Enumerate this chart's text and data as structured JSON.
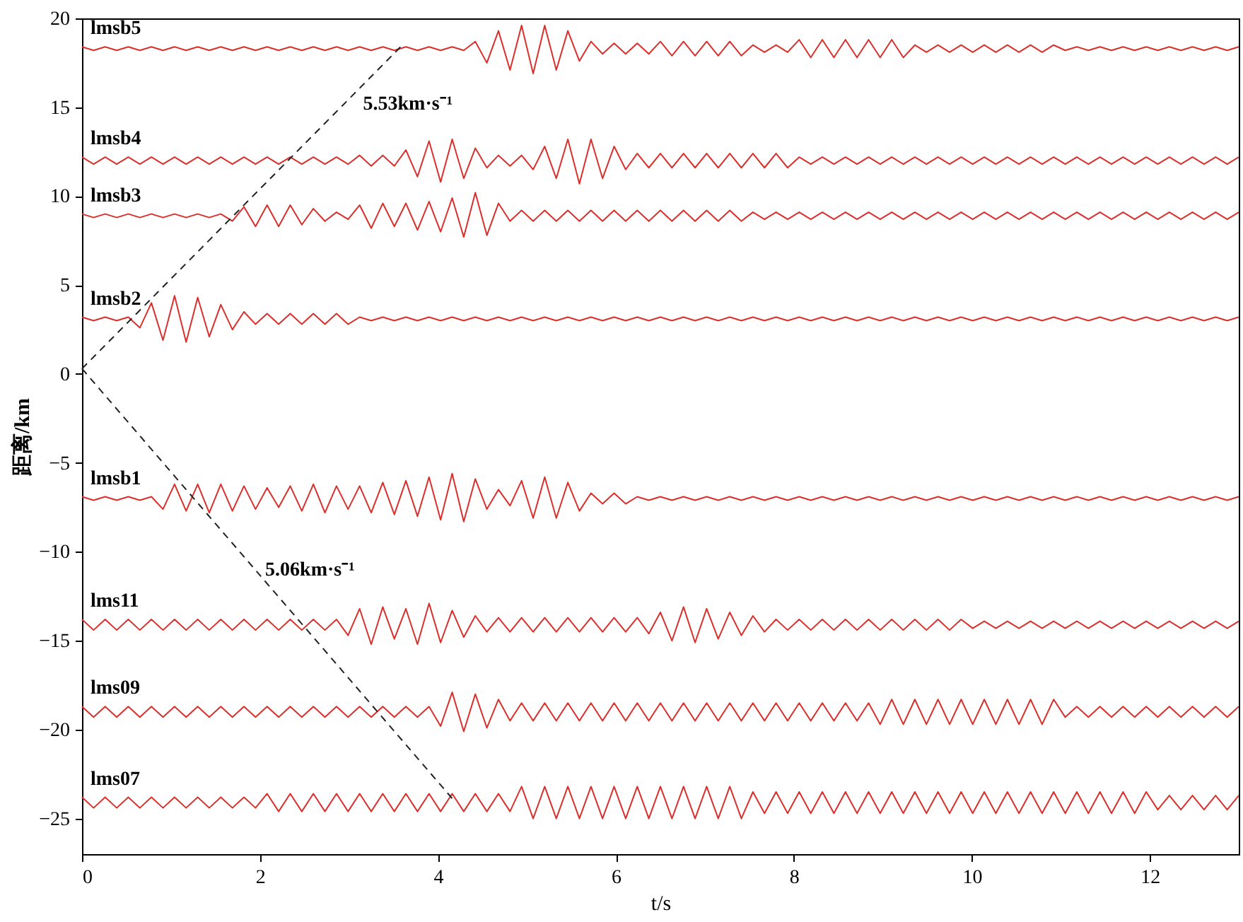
{
  "chart_data": {
    "type": "line",
    "xlabel": "t/s",
    "ylabel": "距离/km",
    "xlim": [
      0,
      13
    ],
    "ylim": [
      -27,
      20
    ],
    "xticks": [
      0,
      2,
      4,
      6,
      8,
      10,
      12
    ],
    "yticks": [
      -25,
      -20,
      -15,
      -10,
      -5,
      0,
      5,
      10,
      15,
      20
    ],
    "line_style": "solid",
    "x": [
      0,
      0.13,
      0.26,
      0.39,
      0.52,
      0.65,
      0.78,
      0.91,
      1.04,
      1.17,
      1.3,
      1.43,
      1.56,
      1.69,
      1.82,
      1.95,
      2.08,
      2.21,
      2.34,
      2.47,
      2.6,
      2.73,
      2.86,
      2.99,
      3.12,
      3.25,
      3.38,
      3.51,
      3.64,
      3.77,
      3.9,
      4.03,
      4.16,
      4.29,
      4.42,
      4.55,
      4.68,
      4.81,
      4.94,
      5.07,
      5.2,
      5.33,
      5.46,
      5.59,
      5.72,
      5.85,
      5.98,
      6.11,
      6.24,
      6.37,
      6.5,
      6.63,
      6.76,
      6.89,
      7.02,
      7.15,
      7.28,
      7.41,
      7.54,
      7.67,
      7.8,
      7.93,
      8.06,
      8.19,
      8.32,
      8.45,
      8.58,
      8.71,
      8.84,
      8.97,
      9.1,
      9.23,
      9.36,
      9.49,
      9.62,
      9.75,
      9.88,
      10.01,
      10.14,
      10.27,
      10.4,
      10.53,
      10.66,
      10.79,
      10.92,
      11.05,
      11.18,
      11.31,
      11.44,
      11.57,
      11.7,
      11.83,
      11.96,
      12.09,
      12.22,
      12.35,
      12.48,
      12.61,
      12.74,
      12.87,
      13
    ],
    "series": [
      {
        "name": "lmsb5",
        "color": "#d9302c",
        "values": [
          18.4,
          18.2,
          18.4,
          18.2,
          18.4,
          18.2,
          18.4,
          18.2,
          18.4,
          18.2,
          18.4,
          18.2,
          18.4,
          18.2,
          18.4,
          18.2,
          18.4,
          18.2,
          18.4,
          18.2,
          18.4,
          18.2,
          18.4,
          18.2,
          18.4,
          18.2,
          18.4,
          18.2,
          18.4,
          18.2,
          18.4,
          18.2,
          18.4,
          18.2,
          18.7,
          17.5,
          19.3,
          17.1,
          19.6,
          16.9,
          19.6,
          17.1,
          19.3,
          17.6,
          18.7,
          18.0,
          18.6,
          18.0,
          18.6,
          18.0,
          18.7,
          17.9,
          18.7,
          17.9,
          18.7,
          17.9,
          18.7,
          17.9,
          18.5,
          18.1,
          18.5,
          18.1,
          18.8,
          17.8,
          18.8,
          17.8,
          18.8,
          17.8,
          18.8,
          17.8,
          18.8,
          17.8,
          18.5,
          18.1,
          18.5,
          18.1,
          18.5,
          18.1,
          18.5,
          18.1,
          18.5,
          18.1,
          18.5,
          18.1,
          18.5,
          18.2,
          18.4,
          18.2,
          18.4,
          18.2,
          18.4,
          18.2,
          18.4,
          18.2,
          18.4,
          18.2,
          18.4,
          18.2,
          18.4,
          18.2,
          18.4
        ]
      },
      {
        "name": "lmsb4",
        "color": "#d9302c",
        "values": [
          12.2,
          11.8,
          12.2,
          11.8,
          12.2,
          11.8,
          12.2,
          11.8,
          12.2,
          11.8,
          12.2,
          11.8,
          12.2,
          11.8,
          12.2,
          11.8,
          12.2,
          11.8,
          12.2,
          11.8,
          12.2,
          11.8,
          12.2,
          11.8,
          12.3,
          11.7,
          12.3,
          11.7,
          12.6,
          11.1,
          13.1,
          10.8,
          13.2,
          11.0,
          12.7,
          11.6,
          12.3,
          11.7,
          12.3,
          11.5,
          12.8,
          11.0,
          13.2,
          10.7,
          13.2,
          11.0,
          12.8,
          11.5,
          12.4,
          11.6,
          12.4,
          11.6,
          12.4,
          11.6,
          12.4,
          11.6,
          12.4,
          11.6,
          12.4,
          11.6,
          12.4,
          11.6,
          12.2,
          11.8,
          12.2,
          11.8,
          12.2,
          11.8,
          12.2,
          11.8,
          12.2,
          11.8,
          12.2,
          11.8,
          12.2,
          11.8,
          12.2,
          11.8,
          12.2,
          11.8,
          12.2,
          11.8,
          12.2,
          11.8,
          12.2,
          11.8,
          12.2,
          11.8,
          12.2,
          11.8,
          12.2,
          11.8,
          12.2,
          11.8,
          12.2,
          11.8,
          12.2,
          11.8,
          12.2,
          11.8,
          12.2
        ]
      },
      {
        "name": "lmsb3",
        "color": "#d9302c",
        "values": [
          9.0,
          8.8,
          9.0,
          8.8,
          9.0,
          8.8,
          9.0,
          8.8,
          9.0,
          8.8,
          9.0,
          8.8,
          9.0,
          8.6,
          9.4,
          8.3,
          9.5,
          8.3,
          9.5,
          8.4,
          9.3,
          8.6,
          9.1,
          8.7,
          9.5,
          8.2,
          9.6,
          8.3,
          9.6,
          8.1,
          9.7,
          8.0,
          9.9,
          7.7,
          10.2,
          7.8,
          9.6,
          8.6,
          9.2,
          8.6,
          9.2,
          8.6,
          9.2,
          8.6,
          9.2,
          8.6,
          9.2,
          8.6,
          9.2,
          8.6,
          9.2,
          8.6,
          9.2,
          8.6,
          9.2,
          8.6,
          9.2,
          8.6,
          9.1,
          8.7,
          9.1,
          8.7,
          9.1,
          8.7,
          9.1,
          8.7,
          9.1,
          8.7,
          9.1,
          8.7,
          9.1,
          8.7,
          9.1,
          8.7,
          9.1,
          8.7,
          9.1,
          8.7,
          9.1,
          8.7,
          9.1,
          8.7,
          9.1,
          8.7,
          9.1,
          8.7,
          9.1,
          8.7,
          9.1,
          8.7,
          9.1,
          8.7,
          9.1,
          8.7,
          9.1,
          8.7,
          9.1,
          8.7,
          9.1,
          8.7,
          9.1
        ]
      },
      {
        "name": "lmsb2",
        "color": "#d9302c",
        "values": [
          3.2,
          3.0,
          3.2,
          3.0,
          3.2,
          2.6,
          4.0,
          1.9,
          4.4,
          1.8,
          4.3,
          2.1,
          3.9,
          2.5,
          3.5,
          2.8,
          3.4,
          2.8,
          3.4,
          2.8,
          3.4,
          2.8,
          3.4,
          2.8,
          3.2,
          3.0,
          3.2,
          3.0,
          3.2,
          3.0,
          3.2,
          3.0,
          3.2,
          3.0,
          3.2,
          3.0,
          3.2,
          3.0,
          3.2,
          3.0,
          3.2,
          3.0,
          3.2,
          3.0,
          3.2,
          3.0,
          3.2,
          3.0,
          3.2,
          3.0,
          3.2,
          3.0,
          3.2,
          3.0,
          3.2,
          3.0,
          3.2,
          3.0,
          3.2,
          3.0,
          3.2,
          3.0,
          3.2,
          3.0,
          3.2,
          3.0,
          3.2,
          3.0,
          3.2,
          3.0,
          3.2,
          3.0,
          3.2,
          3.0,
          3.2,
          3.0,
          3.2,
          3.0,
          3.2,
          3.0,
          3.2,
          3.0,
          3.2,
          3.0,
          3.2,
          3.0,
          3.2,
          3.0,
          3.2,
          3.0,
          3.2,
          3.0,
          3.2,
          3.0,
          3.2,
          3.0,
          3.2,
          3.0,
          3.2,
          3.0,
          3.2
        ]
      },
      {
        "name": "lmsb1",
        "color": "#d9302c",
        "values": [
          -6.9,
          -7.1,
          -6.9,
          -7.1,
          -6.9,
          -7.1,
          -6.9,
          -7.6,
          -6.2,
          -7.7,
          -6.2,
          -7.8,
          -6.2,
          -7.7,
          -6.3,
          -7.6,
          -6.4,
          -7.5,
          -6.3,
          -7.7,
          -6.2,
          -7.8,
          -6.3,
          -7.6,
          -6.3,
          -7.8,
          -6.1,
          -7.9,
          -6.0,
          -8.0,
          -5.8,
          -8.2,
          -5.6,
          -8.3,
          -5.9,
          -7.6,
          -6.5,
          -7.4,
          -6.0,
          -8.1,
          -5.8,
          -8.1,
          -6.1,
          -7.7,
          -6.7,
          -7.3,
          -6.7,
          -7.3,
          -6.9,
          -7.1,
          -6.9,
          -7.1,
          -6.9,
          -7.1,
          -6.9,
          -7.1,
          -6.9,
          -7.1,
          -6.9,
          -7.1,
          -6.9,
          -7.1,
          -6.9,
          -7.1,
          -6.9,
          -7.1,
          -6.9,
          -7.1,
          -6.9,
          -7.1,
          -6.9,
          -7.1,
          -6.9,
          -7.1,
          -6.9,
          -7.1,
          -6.9,
          -7.1,
          -6.9,
          -7.1,
          -6.9,
          -7.1,
          -6.9,
          -7.1,
          -6.9,
          -7.1,
          -6.9,
          -7.1,
          -6.9,
          -7.1,
          -6.9,
          -7.1,
          -6.9,
          -7.1,
          -6.9,
          -7.1,
          -6.9,
          -7.1,
          -6.9,
          -7.1,
          -6.9
        ]
      },
      {
        "name": "lms11",
        "color": "#d9302c",
        "values": [
          -13.8,
          -14.4,
          -13.8,
          -14.4,
          -13.8,
          -14.4,
          -13.8,
          -14.4,
          -13.8,
          -14.4,
          -13.8,
          -14.4,
          -13.8,
          -14.4,
          -13.8,
          -14.4,
          -13.8,
          -14.4,
          -13.8,
          -14.4,
          -13.8,
          -14.4,
          -13.8,
          -14.7,
          -13.2,
          -15.2,
          -13.1,
          -14.9,
          -13.2,
          -15.2,
          -12.9,
          -15.1,
          -13.3,
          -14.8,
          -13.6,
          -14.5,
          -13.7,
          -14.5,
          -13.7,
          -14.5,
          -13.7,
          -14.5,
          -13.7,
          -14.5,
          -13.7,
          -14.5,
          -13.7,
          -14.5,
          -13.7,
          -14.6,
          -13.4,
          -15.0,
          -13.1,
          -15.1,
          -13.2,
          -14.9,
          -13.4,
          -14.7,
          -13.6,
          -14.5,
          -13.8,
          -14.4,
          -13.8,
          -14.4,
          -13.8,
          -14.4,
          -13.8,
          -14.4,
          -13.8,
          -14.4,
          -13.8,
          -14.4,
          -13.8,
          -14.4,
          -13.8,
          -14.4,
          -13.8,
          -14.3,
          -13.9,
          -14.3,
          -13.9,
          -14.3,
          -13.9,
          -14.3,
          -13.9,
          -14.3,
          -13.9,
          -14.3,
          -13.9,
          -14.3,
          -13.9,
          -14.3,
          -13.9,
          -14.3,
          -13.9,
          -14.3,
          -13.9,
          -14.3,
          -13.9,
          -14.3,
          -13.9
        ]
      },
      {
        "name": "lms09",
        "color": "#d9302c",
        "values": [
          -18.7,
          -19.3,
          -18.7,
          -19.3,
          -18.7,
          -19.3,
          -18.7,
          -19.3,
          -18.7,
          -19.3,
          -18.7,
          -19.3,
          -18.7,
          -19.3,
          -18.7,
          -19.3,
          -18.7,
          -19.3,
          -18.7,
          -19.3,
          -18.7,
          -19.3,
          -18.7,
          -19.3,
          -18.7,
          -19.3,
          -18.7,
          -19.3,
          -18.7,
          -19.3,
          -18.7,
          -19.8,
          -17.9,
          -20.1,
          -18.0,
          -19.9,
          -18.3,
          -19.5,
          -18.5,
          -19.5,
          -18.5,
          -19.5,
          -18.5,
          -19.5,
          -18.5,
          -19.5,
          -18.5,
          -19.5,
          -18.5,
          -19.5,
          -18.5,
          -19.5,
          -18.5,
          -19.5,
          -18.5,
          -19.5,
          -18.5,
          -19.5,
          -18.5,
          -19.5,
          -18.5,
          -19.5,
          -18.5,
          -19.5,
          -18.5,
          -19.5,
          -18.5,
          -19.5,
          -18.5,
          -19.7,
          -18.3,
          -19.7,
          -18.3,
          -19.7,
          -18.3,
          -19.7,
          -18.3,
          -19.7,
          -18.3,
          -19.7,
          -18.3,
          -19.7,
          -18.3,
          -19.7,
          -18.3,
          -19.3,
          -18.7,
          -19.3,
          -18.7,
          -19.3,
          -18.7,
          -19.3,
          -18.7,
          -19.3,
          -18.7,
          -19.3,
          -18.7,
          -19.3,
          -18.7,
          -19.3,
          -18.7
        ]
      },
      {
        "name": "lms07",
        "color": "#d9302c",
        "values": [
          -23.8,
          -24.4,
          -23.8,
          -24.4,
          -23.8,
          -24.4,
          -23.8,
          -24.4,
          -23.8,
          -24.4,
          -23.8,
          -24.4,
          -23.8,
          -24.4,
          -23.8,
          -24.4,
          -23.6,
          -24.6,
          -23.6,
          -24.6,
          -23.6,
          -24.6,
          -23.6,
          -24.6,
          -23.6,
          -24.6,
          -23.6,
          -24.6,
          -23.6,
          -24.6,
          -23.6,
          -24.6,
          -23.6,
          -24.6,
          -23.6,
          -24.6,
          -23.6,
          -24.6,
          -23.2,
          -25.0,
          -23.2,
          -25.0,
          -23.2,
          -25.0,
          -23.2,
          -25.0,
          -23.2,
          -25.0,
          -23.2,
          -25.0,
          -23.2,
          -25.0,
          -23.2,
          -25.0,
          -23.2,
          -25.0,
          -23.2,
          -25.0,
          -23.5,
          -24.7,
          -23.5,
          -24.7,
          -23.5,
          -24.7,
          -23.5,
          -24.7,
          -23.5,
          -24.7,
          -23.5,
          -24.7,
          -23.5,
          -24.7,
          -23.5,
          -24.7,
          -23.5,
          -24.7,
          -23.5,
          -24.7,
          -23.5,
          -24.7,
          -23.5,
          -24.7,
          -23.5,
          -24.7,
          -23.5,
          -24.7,
          -23.5,
          -24.7,
          -23.5,
          -24.7,
          -23.5,
          -24.7,
          -23.5,
          -24.5,
          -23.7,
          -24.5,
          -23.7,
          -24.5,
          -23.7,
          -24.5,
          -23.7
        ]
      },
      {
        "type": "line",
        "color": "#222222",
        "line_style": "dashed",
        "x": [
          0,
          3.6
        ],
        "values": [
          0.3,
          18.5
        ]
      },
      {
        "type": "line",
        "color": "#222222",
        "line_style": "dashed",
        "x": [
          0,
          4.2
        ],
        "values": [
          0.3,
          -24.1
        ]
      }
    ],
    "annotations": [
      {
        "text": "5.53km·s⁻¹",
        "x": 3.0,
        "y": 15.5
      },
      {
        "text": "5.06km·s⁻¹",
        "x": 1.9,
        "y": -10.7
      }
    ]
  }
}
